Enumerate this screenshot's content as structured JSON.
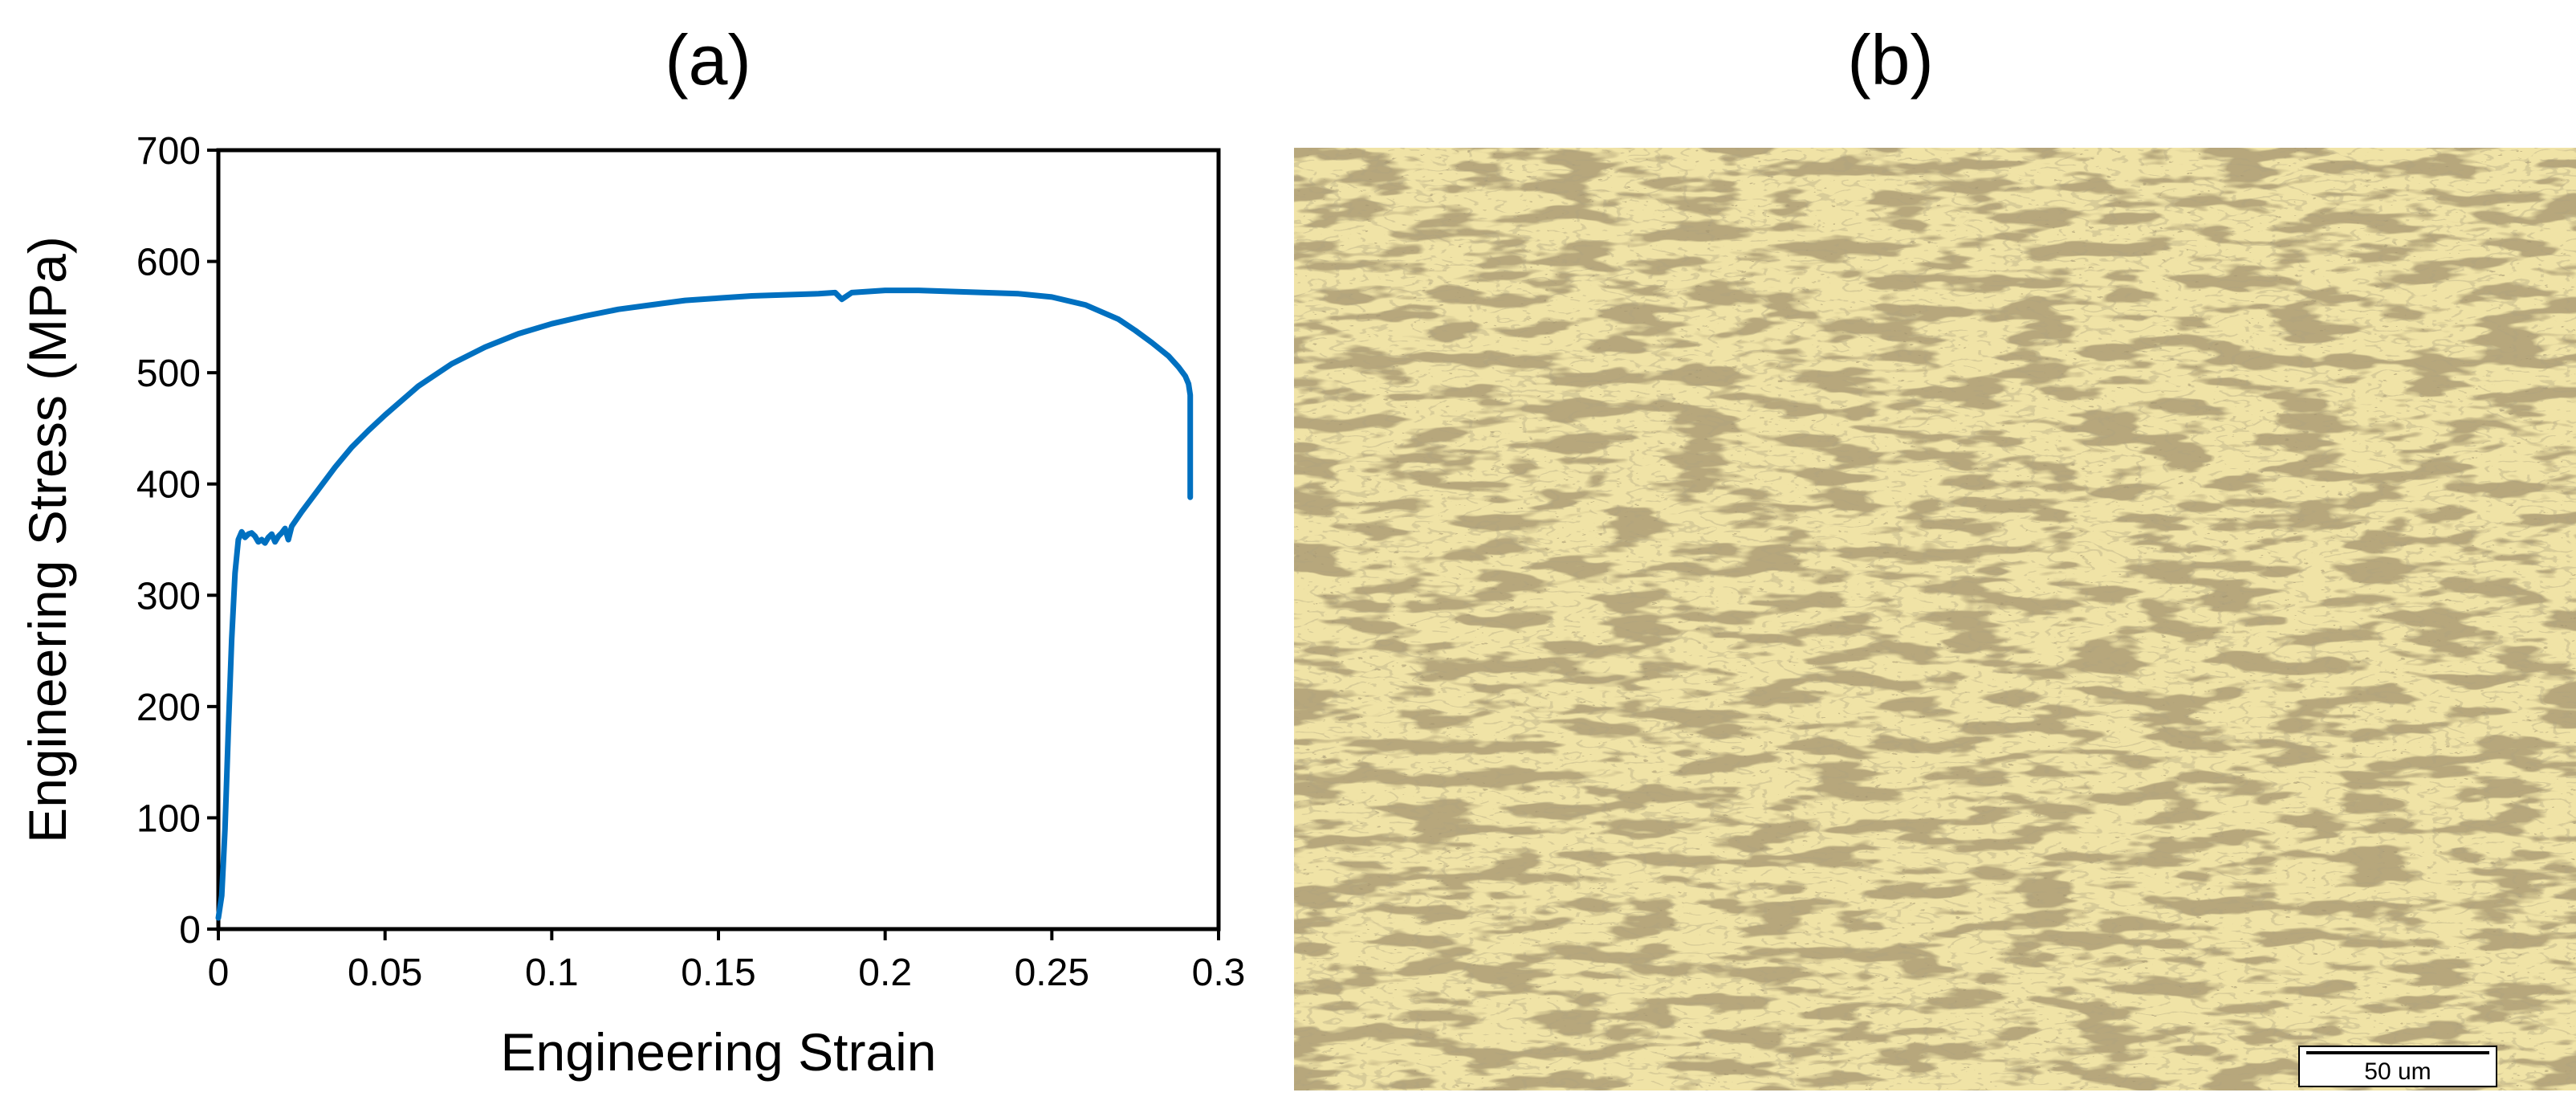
{
  "panels": {
    "a_label": "(a)",
    "b_label": "(b)"
  },
  "chart_data": {
    "type": "line",
    "title": "",
    "xlabel": "Engineering Strain",
    "ylabel": "Engineering Stress (MPa)",
    "xlim": [
      0,
      0.3
    ],
    "ylim": [
      0,
      700
    ],
    "xticks": [
      0,
      0.05,
      0.1,
      0.15,
      0.2,
      0.25,
      0.3
    ],
    "xtick_labels": [
      "0",
      "0.05",
      "0.1",
      "0.15",
      "0.2",
      "0.25",
      "0.3"
    ],
    "yticks": [
      0,
      100,
      200,
      300,
      400,
      500,
      600,
      700
    ],
    "ytick_labels": [
      "0",
      "100",
      "200",
      "300",
      "400",
      "500",
      "600",
      "700"
    ],
    "grid": false,
    "legend": "none",
    "series": [
      {
        "color": "#0070C0",
        "x": [
          0,
          0.001,
          0.002,
          0.003,
          0.004,
          0.005,
          0.006,
          0.007,
          0.008,
          0.009,
          0.01,
          0.011,
          0.012,
          0.013,
          0.014,
          0.015,
          0.016,
          0.017,
          0.018,
          0.019,
          0.02,
          0.021,
          0.022,
          0.025,
          0.03,
          0.035,
          0.04,
          0.045,
          0.05,
          0.06,
          0.07,
          0.08,
          0.09,
          0.1,
          0.11,
          0.12,
          0.13,
          0.14,
          0.15,
          0.16,
          0.17,
          0.18,
          0.185,
          0.187,
          0.19,
          0.2,
          0.21,
          0.22,
          0.23,
          0.24,
          0.25,
          0.26,
          0.27,
          0.275,
          0.28,
          0.285,
          0.288,
          0.29,
          0.291,
          0.2915,
          0.2915
        ],
        "y": [
          10,
          30,
          90,
          180,
          260,
          320,
          350,
          357,
          352,
          355,
          356,
          353,
          348,
          350,
          347,
          352,
          355,
          348,
          353,
          356,
          360,
          350,
          362,
          375,
          395,
          415,
          433,
          448,
          462,
          488,
          508,
          523,
          535,
          544,
          551,
          557,
          561,
          565,
          567,
          569,
          570,
          571,
          572,
          566,
          572,
          574,
          574,
          573,
          572,
          571,
          568,
          561,
          548,
          538,
          527,
          515,
          505,
          497,
          490,
          480,
          388
        ]
      }
    ]
  },
  "micrograph": {
    "scale_bar_label": "50 um"
  }
}
